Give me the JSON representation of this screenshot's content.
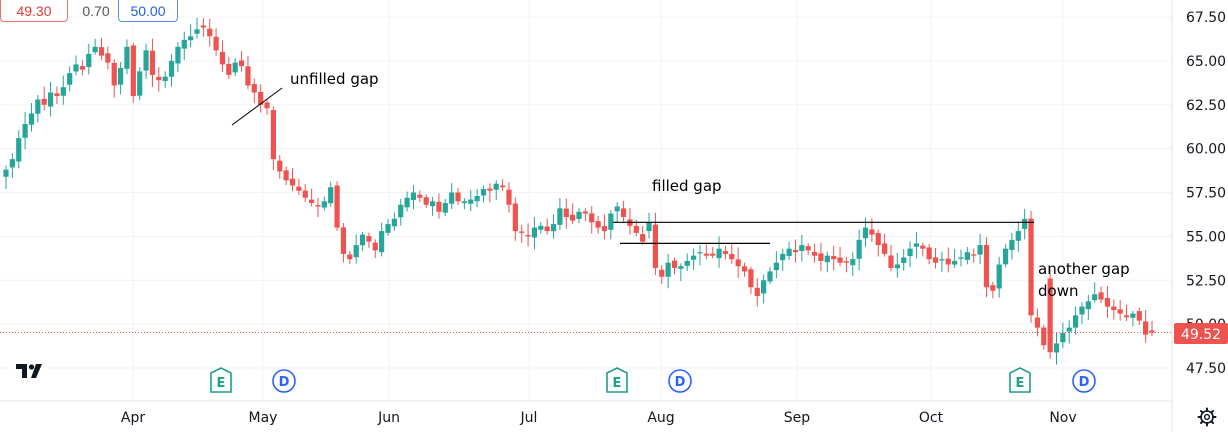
{
  "header": {
    "bid_price": "49.30",
    "spread": "0.70",
    "ask_price": "50.00"
  },
  "current_price_label": "49.52",
  "colors": {
    "up": "#26a69a",
    "down": "#ef5350",
    "earnings": "#1f9e89",
    "dividend": "#2962ff",
    "price_line": "#ef5350"
  },
  "chart_data": {
    "type": "candlestick",
    "title": "",
    "xlabel": "",
    "ylabel": "",
    "ylim": [
      45.8,
      68.8
    ],
    "y_ticks": [
      "67.50",
      "65.00",
      "62.50",
      "60.00",
      "57.50",
      "55.00",
      "52.50",
      "50.00",
      "47.50"
    ],
    "x_tick_labels": [
      "Apr",
      "May",
      "Jun",
      "Jul",
      "Aug",
      "Sep",
      "Oct",
      "Nov"
    ],
    "current_price": 49.52,
    "annotations": [
      {
        "text": "unfilled gap"
      },
      {
        "text": "filled gap"
      },
      {
        "text": "another gap"
      },
      {
        "text": "down"
      }
    ],
    "event_markers": [
      {
        "label": "E",
        "month": "Apr"
      },
      {
        "label": "D",
        "month": "May"
      },
      {
        "label": "E",
        "month": "Jul"
      },
      {
        "label": "D",
        "month": "Aug"
      },
      {
        "label": "E",
        "month": "Oct"
      },
      {
        "label": "D",
        "month": "Nov"
      }
    ],
    "gap_lines": [
      {
        "price": 55.8
      },
      {
        "price": 54.6
      }
    ],
    "close_series": [
      58.8,
      59.4,
      60.6,
      61.4,
      62.0,
      62.8,
      62.5,
      63.2,
      63.0,
      63.5,
      64.3,
      64.8,
      64.5,
      65.4,
      65.8,
      65.3,
      64.9,
      63.6,
      64.6,
      65.8,
      63.0,
      64.4,
      65.6,
      64.2,
      63.9,
      64.1,
      65.0,
      65.8,
      66.2,
      66.4,
      66.8,
      66.9,
      66.4,
      65.6,
      64.8,
      64.2,
      64.9,
      64.7,
      63.6,
      63.2,
      62.5,
      62.3,
      59.4,
      58.7,
      58.2,
      57.9,
      57.6,
      57.2,
      56.9,
      56.7,
      57.0,
      57.8,
      55.5,
      54.0,
      53.7,
      54.5,
      55.1,
      54.7,
      54.2,
      55.3,
      55.7,
      56.0,
      56.8,
      57.2,
      57.5,
      57.2,
      56.8,
      57.0,
      56.4,
      56.9,
      57.5,
      57.0,
      57.0,
      57.1,
      57.3,
      57.7,
      57.6,
      58.0,
      57.8,
      56.8,
      55.3,
      55.2,
      55.0,
      55.5,
      55.6,
      55.3,
      55.7,
      56.6,
      56.1,
      55.9,
      56.4,
      56.3,
      55.8,
      55.5,
      55.3,
      56.3,
      56.7,
      56.1,
      55.6,
      55.2,
      54.7,
      55.8,
      53.2,
      52.7,
      53.5,
      53.2,
      53.3,
      53.6,
      53.9,
      54.1,
      53.9,
      53.9,
      54.3,
      54.0,
      53.7,
      53.3,
      53.0,
      52.1,
      51.6,
      52.5,
      53.0,
      53.5,
      54.0,
      54.3,
      54.1,
      54.5,
      54.2,
      53.9,
      53.6,
      53.9,
      53.7,
      53.5,
      53.5,
      53.7,
      54.8,
      55.5,
      55.1,
      54.5,
      54.0,
      53.2,
      53.4,
      53.8,
      54.3,
      54.6,
      54.3,
      53.7,
      53.5,
      53.7,
      53.4,
      53.6,
      53.8,
      54.1,
      53.9,
      54.5,
      52.1,
      51.9,
      53.4,
      54.3,
      54.8,
      55.3,
      56.0,
      50.5,
      49.8,
      48.8,
      48.4,
      48.9,
      49.5,
      49.8,
      50.5,
      51.0,
      51.3,
      51.7,
      51.4,
      51.0,
      50.8,
      50.6,
      50.4,
      50.6,
      50.2,
      49.4,
      49.52
    ]
  }
}
